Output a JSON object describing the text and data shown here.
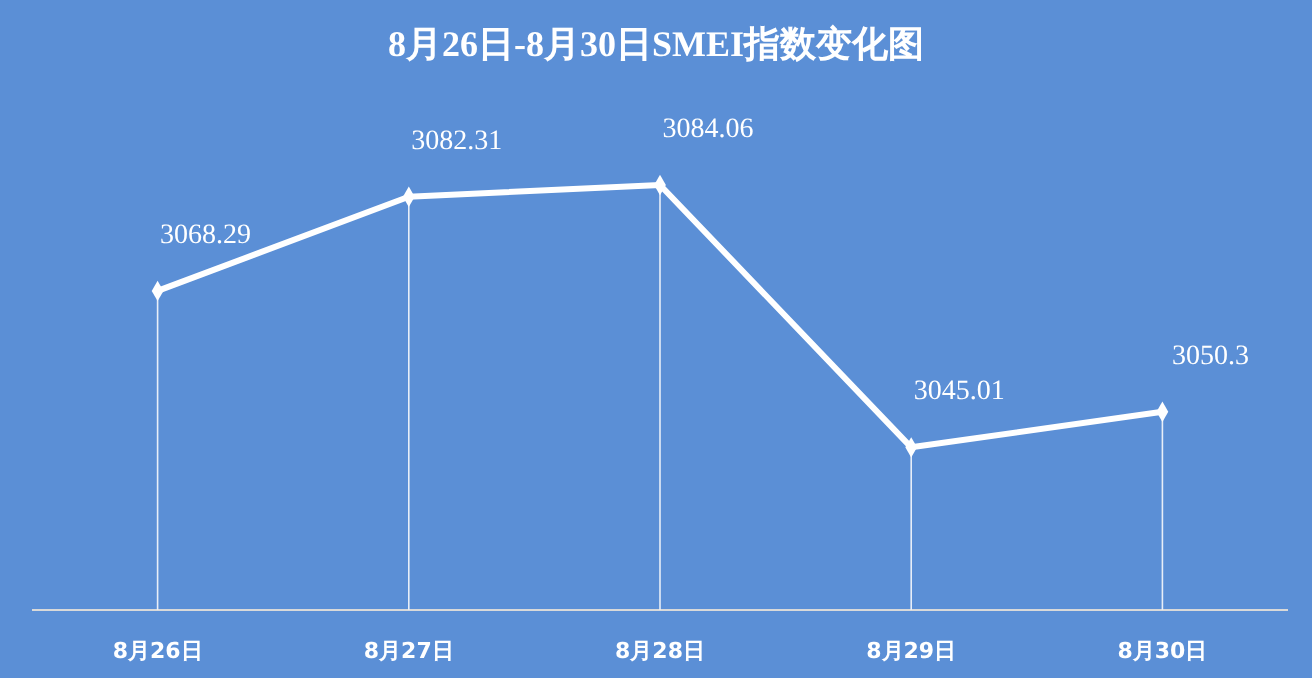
{
  "chart_data": {
    "type": "line",
    "title": "8月26日-8月30日SMEI指数变化图",
    "categories": [
      "8月26日",
      "8月27日",
      "8月28日",
      "8月29日",
      "8月30日"
    ],
    "series": [
      {
        "color": "#ffffff",
        "values": [
          3068.29,
          3082.31,
          3084.06,
          3045.01,
          3050.3
        ]
      }
    ],
    "data_labels": true,
    "marker": "diamond",
    "line_style": "solid",
    "grid": "x"
  }
}
